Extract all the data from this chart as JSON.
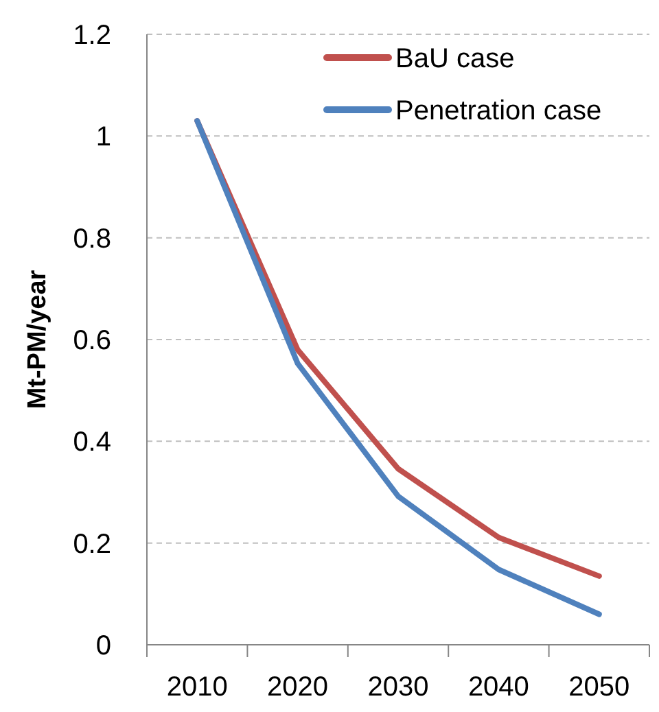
{
  "chart_data": {
    "type": "line",
    "ylabel": "Mt-PM/year",
    "categories": [
      "2010",
      "2020",
      "2030",
      "2040",
      "2050"
    ],
    "series": [
      {
        "name": "BaU case",
        "color": "#c0504d",
        "values": [
          1.03,
          0.58,
          0.346,
          0.211,
          0.135
        ]
      },
      {
        "name": "Penetration case",
        "color": "#4f81bd",
        "values": [
          1.03,
          0.553,
          0.292,
          0.148,
          0.06
        ]
      }
    ],
    "ylim": [
      0,
      1.2
    ],
    "yticks": [
      0,
      0.2,
      0.4,
      0.6,
      0.8,
      1,
      1.2
    ],
    "grid": "y",
    "legend": "top right",
    "line_style": "solid",
    "marker": "none"
  }
}
